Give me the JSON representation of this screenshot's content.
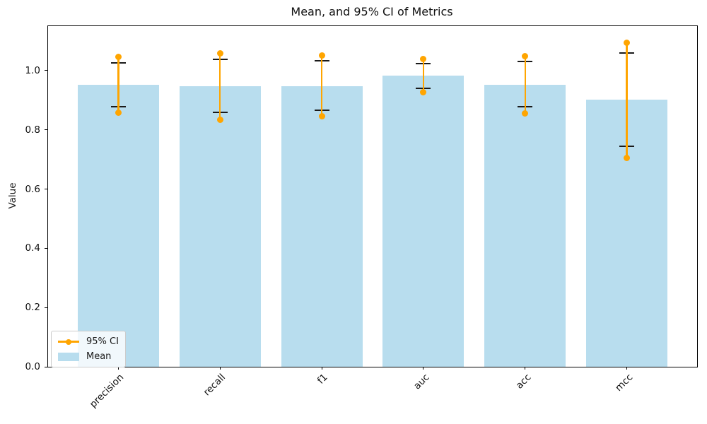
{
  "chart_data": {
    "type": "bar",
    "title": "Mean, and 95% CI of Metrics",
    "xlabel": "",
    "ylabel": "Value",
    "categories": [
      "precision",
      "recall",
      "f1",
      "auc",
      "acc",
      "mcc"
    ],
    "series": [
      {
        "name": "Mean",
        "type": "bar",
        "color": "#b8ddee",
        "values": [
          0.952,
          0.947,
          0.947,
          0.982,
          0.953,
          0.901
        ]
      },
      {
        "name": "95% CI",
        "type": "errorbar-line-with-markers",
        "color": "#ffa500",
        "low": [
          0.857,
          0.835,
          0.845,
          0.926,
          0.855,
          0.706
        ],
        "high": [
          1.047,
          1.057,
          1.052,
          1.038,
          1.049,
          1.095
        ]
      },
      {
        "name": "inner-error-caps",
        "type": "caps",
        "color": "#1a1a1a",
        "low": [
          0.879,
          0.858,
          0.865,
          0.939,
          0.877,
          0.745
        ],
        "high": [
          1.027,
          1.038,
          1.032,
          1.024,
          1.03,
          1.059
        ]
      }
    ],
    "ylim": [
      0,
      1.15
    ],
    "yticks": [
      0,
      0.2,
      0.4,
      0.6,
      0.8,
      1.0
    ],
    "grid": false,
    "legend": {
      "position": "lower left",
      "items": [
        "95% CI",
        "Mean"
      ]
    }
  }
}
